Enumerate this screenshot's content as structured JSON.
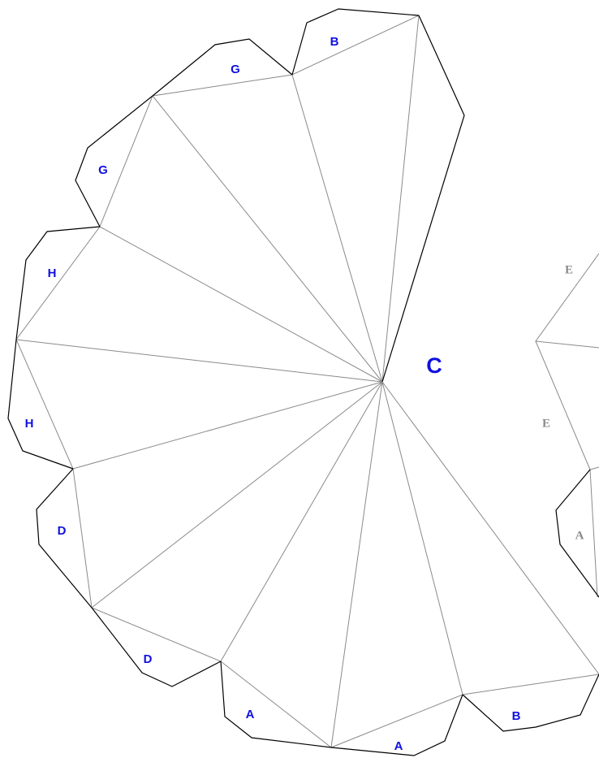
{
  "center_label": "C",
  "tabs": [
    "B",
    "G",
    "G",
    "H",
    "H",
    "D",
    "D",
    "A",
    "A",
    "B"
  ],
  "right_piece": [
    "E",
    "E",
    "A"
  ]
}
